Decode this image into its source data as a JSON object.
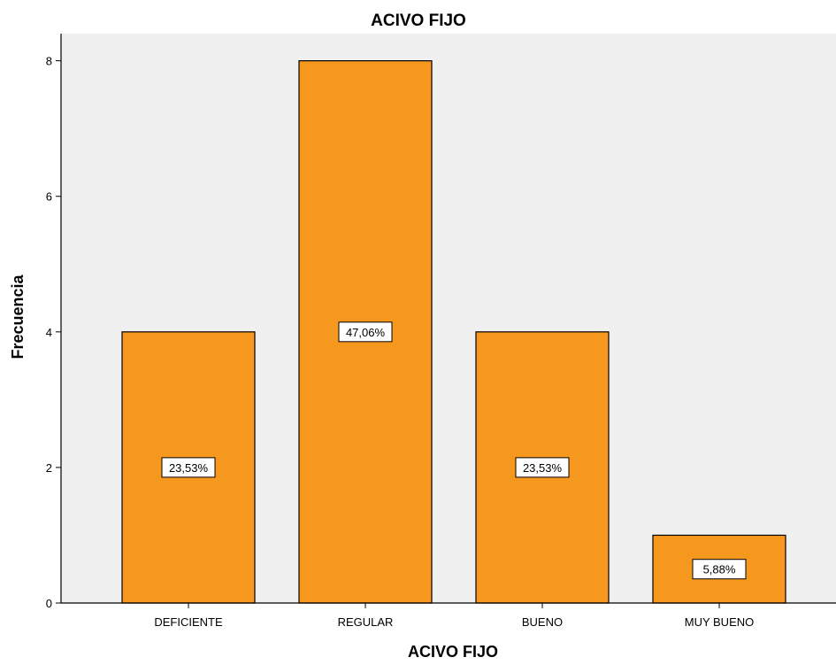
{
  "chart_data": {
    "type": "bar",
    "title": "ACIVO FIJO",
    "xlabel": "ACIVO FIJO",
    "ylabel": "Frecuencia",
    "categories": [
      "DEFICIENTE",
      "REGULAR",
      "BUENO",
      "MUY BUENO"
    ],
    "values": [
      4,
      8,
      4,
      1
    ],
    "data_labels": [
      "23,53%",
      "47,06%",
      "23,53%",
      "5,88%"
    ],
    "ylim": [
      0,
      8.4
    ],
    "yticks": [
      0,
      2,
      4,
      6,
      8
    ],
    "grid": false,
    "legend": "none",
    "colors": {
      "bar_fill": "#f6981e",
      "bar_stroke": "#000000",
      "plot_background": "#f0f0f0",
      "page_background": "#ffffff",
      "axis": "#000000"
    }
  }
}
